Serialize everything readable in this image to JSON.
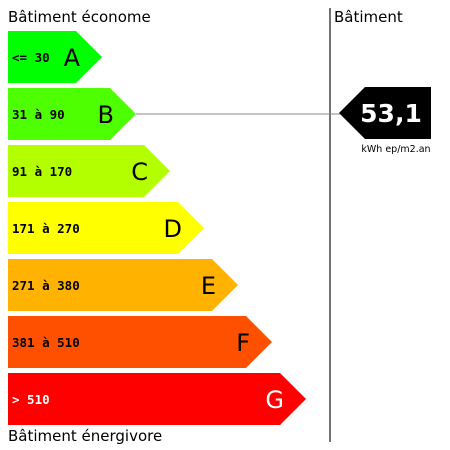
{
  "header": {
    "left_title": "Bâtiment économe",
    "right_title": "Bâtiment"
  },
  "footer": {
    "bottom_title": "Bâtiment énergivore"
  },
  "classes": [
    {
      "letter": "A",
      "range": "<= 30",
      "color": "#00ff00"
    },
    {
      "letter": "B",
      "range": "31 à 90",
      "color": "#4dff00"
    },
    {
      "letter": "C",
      "range": "91 à 170",
      "color": "#b3ff00"
    },
    {
      "letter": "D",
      "range": "171 à 270",
      "color": "#ffff00"
    },
    {
      "letter": "E",
      "range": "271 à 380",
      "color": "#ffb300"
    },
    {
      "letter": "F",
      "range": "381 à 510",
      "color": "#ff5000"
    },
    {
      "letter": "G",
      "range": "> 510",
      "color": "#ff0000"
    }
  ],
  "building": {
    "value": "53,1",
    "unit": "kWh ep/m2.an",
    "class": "B",
    "marker_color": "#000000"
  }
}
